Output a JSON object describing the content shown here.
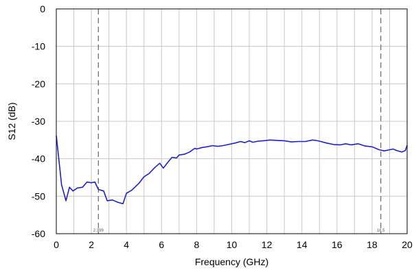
{
  "chart_data": {
    "type": "line",
    "title": "",
    "xlabel": "Frequency (GHz)",
    "ylabel": "S12 (dB)",
    "xlim": [
      0,
      20
    ],
    "ylim": [
      -60,
      0
    ],
    "x_ticks": [
      "0",
      "2",
      "4",
      "6",
      "8",
      "10",
      "12",
      "14",
      "16",
      "18",
      "20"
    ],
    "y_ticks": [
      "0",
      "-10",
      "-20",
      "-30",
      "-40",
      "-50",
      "-60"
    ],
    "grid": true,
    "legend": "none",
    "line_color": "#1f1fcf",
    "markers": [
      {
        "label": "2.399",
        "x": 2.399
      },
      {
        "label": "18.5",
        "x": 18.5
      }
    ],
    "series": [
      {
        "x": [
          0,
          0.3,
          0.55,
          0.75,
          0.95,
          1.2,
          1.5,
          1.75,
          2.0,
          2.2,
          2.4,
          2.7,
          2.9,
          3.2,
          3.5,
          3.8,
          4.0,
          4.3,
          4.7,
          5.0,
          5.3,
          5.6,
          5.9,
          6.1,
          6.35,
          6.6,
          6.85,
          7.0,
          7.3,
          7.6,
          7.9,
          8.0,
          8.3,
          8.6,
          8.9,
          9.2,
          9.5,
          9.8,
          10.2,
          10.5,
          10.75,
          11.0,
          11.2,
          11.5,
          11.8,
          12.2,
          12.6,
          13.0,
          13.4,
          13.8,
          14.2,
          14.6,
          14.8,
          15.0,
          15.4,
          15.8,
          16.2,
          16.5,
          16.8,
          17.2,
          17.6,
          18.0,
          18.4,
          18.7,
          19.0,
          19.2,
          19.4,
          19.7,
          19.9,
          20.0
        ],
        "y": [
          -33.8,
          -47.0,
          -51.2,
          -47.6,
          -48.6,
          -47.8,
          -47.6,
          -46.2,
          -46.4,
          -46.2,
          -48.2,
          -48.6,
          -51.2,
          -51.0,
          -51.6,
          -52.0,
          -49.2,
          -48.4,
          -46.6,
          -44.8,
          -43.9,
          -42.4,
          -41.2,
          -42.5,
          -41.0,
          -39.6,
          -39.8,
          -39.0,
          -38.8,
          -38.2,
          -37.2,
          -37.4,
          -37.0,
          -36.8,
          -36.5,
          -36.7,
          -36.5,
          -36.2,
          -35.8,
          -35.4,
          -35.7,
          -35.2,
          -35.6,
          -35.3,
          -35.2,
          -35.0,
          -35.1,
          -35.2,
          -35.5,
          -35.4,
          -35.4,
          -35.0,
          -35.1,
          -35.3,
          -35.8,
          -36.2,
          -36.3,
          -36.0,
          -36.3,
          -36.0,
          -36.6,
          -36.8,
          -37.6,
          -37.9,
          -37.6,
          -37.4,
          -37.8,
          -38.2,
          -37.8,
          -36.4
        ]
      }
    ]
  }
}
